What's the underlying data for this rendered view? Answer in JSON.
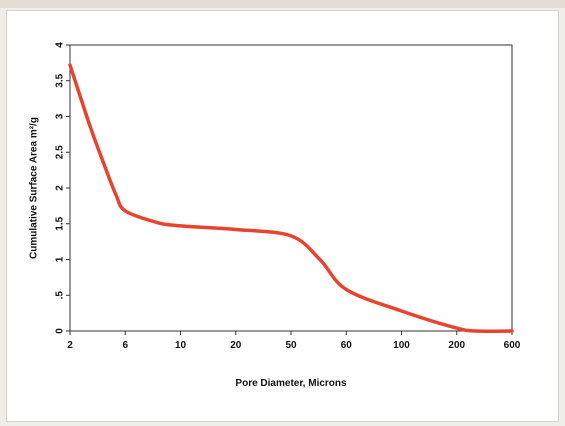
{
  "chart_data": {
    "type": "line",
    "title": "",
    "xlabel": "Pore Diameter, Microns",
    "ylabel": "Cumulative Surface Area m²/g",
    "x_ticks": [
      "2",
      "6",
      "10",
      "20",
      "50",
      "60",
      "100",
      "200",
      "600"
    ],
    "y_ticks": [
      "0",
      ".5",
      "1",
      "1.5",
      "2",
      "2.5",
      "3",
      "3.5",
      "4"
    ],
    "ylim": [
      0,
      4
    ],
    "grid": false,
    "legend": "none",
    "series": [
      {
        "color": "#e8432e",
        "points": [
          {
            "x": 2,
            "y": 3.72
          },
          {
            "x": 3,
            "y": 2.85
          },
          {
            "x": 4,
            "y": 2.3
          },
          {
            "x": 5,
            "y": 1.9
          },
          {
            "x": 6,
            "y": 1.68
          },
          {
            "x": 8,
            "y": 1.52
          },
          {
            "x": 10,
            "y": 1.47
          },
          {
            "x": 20,
            "y": 1.42
          },
          {
            "x": 50,
            "y": 1.33
          },
          {
            "x": 55,
            "y": 1.0
          },
          {
            "x": 60,
            "y": 0.58
          },
          {
            "x": 100,
            "y": 0.28
          },
          {
            "x": 200,
            "y": 0.04
          },
          {
            "x": 300,
            "y": 0.0
          },
          {
            "x": 600,
            "y": 0.0
          }
        ]
      }
    ]
  }
}
